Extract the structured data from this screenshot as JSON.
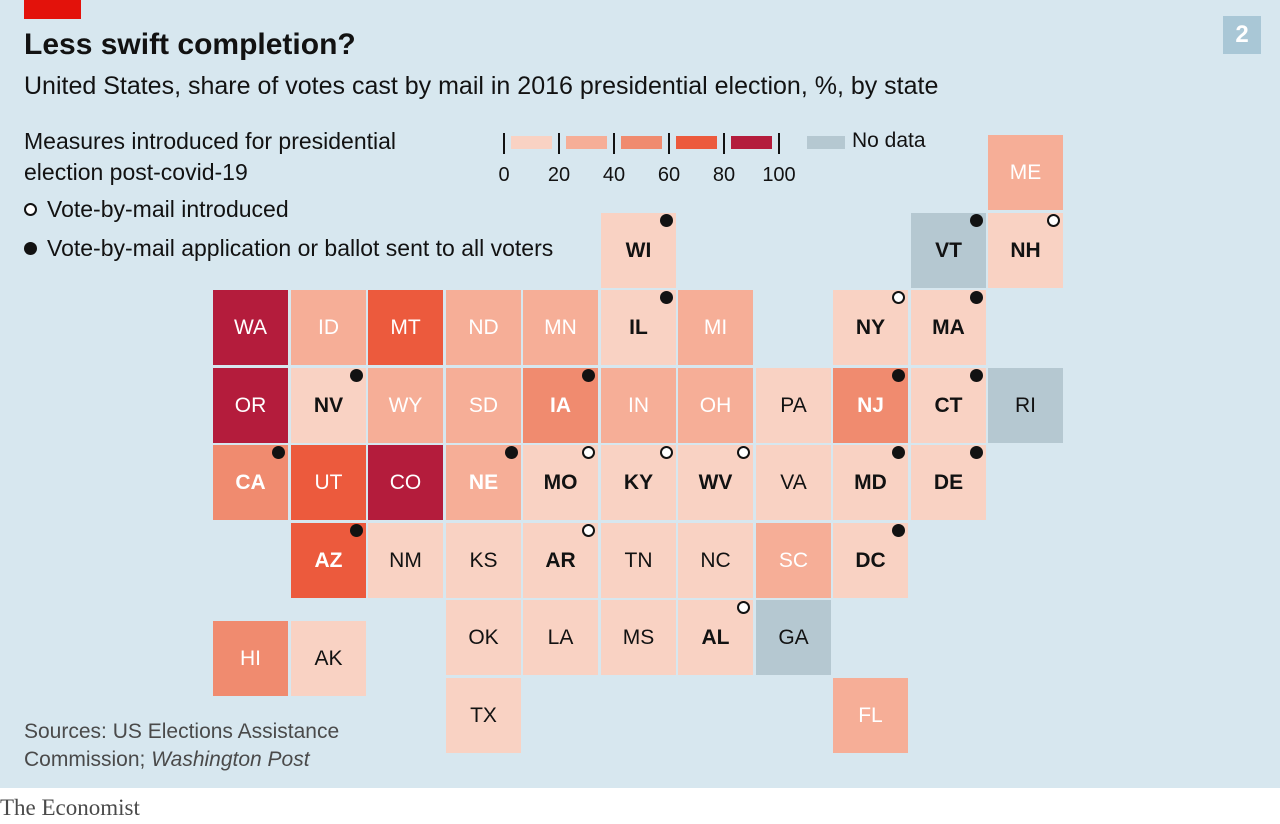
{
  "chart": {
    "number": "2",
    "title": "Less swift completion?",
    "subtitle": "United States, share of votes cast by mail in 2016 presidential election, %, by state"
  },
  "legend": {
    "measures_title": "Measures introduced for presidential election post-covid-19",
    "open_label": "Vote-by-mail introduced",
    "filled_label": "Vote-by-mail application or ballot sent to all voters",
    "scale_ticks": [
      "0",
      "20",
      "40",
      "60",
      "80",
      "100"
    ],
    "scale_colors": [
      "#f9d2c3",
      "#f6ae97",
      "#f08b6f",
      "#ec5a3d",
      "#b41c3c"
    ],
    "no_data_label": "No data",
    "no_data_color": "#b5c8d1"
  },
  "chart_data": {
    "type": "heatmap",
    "layout": "tile-grid map",
    "value_bins": [
      "0-20",
      "20-40",
      "40-60",
      "60-80",
      "80-100",
      "No data"
    ],
    "states": [
      {
        "abbr": "ME",
        "col": 10,
        "row": 0,
        "bin": 1,
        "measure": ""
      },
      {
        "abbr": "WI",
        "col": 5,
        "row": 1,
        "bin": 0,
        "measure": "filled"
      },
      {
        "abbr": "VT",
        "col": 9,
        "row": 1,
        "bin": 5,
        "measure": "filled"
      },
      {
        "abbr": "NH",
        "col": 10,
        "row": 1,
        "bin": 0,
        "measure": "open"
      },
      {
        "abbr": "WA",
        "col": 0,
        "row": 2,
        "bin": 4,
        "measure": ""
      },
      {
        "abbr": "ID",
        "col": 1,
        "row": 2,
        "bin": 1,
        "measure": ""
      },
      {
        "abbr": "MT",
        "col": 2,
        "row": 2,
        "bin": 3,
        "measure": ""
      },
      {
        "abbr": "ND",
        "col": 3,
        "row": 2,
        "bin": 1,
        "measure": ""
      },
      {
        "abbr": "MN",
        "col": 4,
        "row": 2,
        "bin": 1,
        "measure": ""
      },
      {
        "abbr": "IL",
        "col": 5,
        "row": 2,
        "bin": 0,
        "measure": "filled"
      },
      {
        "abbr": "MI",
        "col": 6,
        "row": 2,
        "bin": 1,
        "measure": ""
      },
      {
        "abbr": "NY",
        "col": 8,
        "row": 2,
        "bin": 0,
        "measure": "open"
      },
      {
        "abbr": "MA",
        "col": 9,
        "row": 2,
        "bin": 0,
        "measure": "filled"
      },
      {
        "abbr": "OR",
        "col": 0,
        "row": 3,
        "bin": 4,
        "measure": ""
      },
      {
        "abbr": "NV",
        "col": 1,
        "row": 3,
        "bin": 0,
        "measure": "filled"
      },
      {
        "abbr": "WY",
        "col": 2,
        "row": 3,
        "bin": 1,
        "measure": ""
      },
      {
        "abbr": "SD",
        "col": 3,
        "row": 3,
        "bin": 1,
        "measure": ""
      },
      {
        "abbr": "IA",
        "col": 4,
        "row": 3,
        "bin": 2,
        "measure": "filled"
      },
      {
        "abbr": "IN",
        "col": 5,
        "row": 3,
        "bin": 1,
        "measure": ""
      },
      {
        "abbr": "OH",
        "col": 6,
        "row": 3,
        "bin": 1,
        "measure": ""
      },
      {
        "abbr": "PA",
        "col": 7,
        "row": 3,
        "bin": 0,
        "measure": ""
      },
      {
        "abbr": "NJ",
        "col": 8,
        "row": 3,
        "bin": 2,
        "measure": "filled"
      },
      {
        "abbr": "CT",
        "col": 9,
        "row": 3,
        "bin": 0,
        "measure": "filled"
      },
      {
        "abbr": "RI",
        "col": 10,
        "row": 3,
        "bin": 5,
        "measure": ""
      },
      {
        "abbr": "CA",
        "col": 0,
        "row": 4,
        "bin": 2,
        "measure": "filled"
      },
      {
        "abbr": "UT",
        "col": 1,
        "row": 4,
        "bin": 3,
        "measure": ""
      },
      {
        "abbr": "CO",
        "col": 2,
        "row": 4,
        "bin": 4,
        "measure": ""
      },
      {
        "abbr": "NE",
        "col": 3,
        "row": 4,
        "bin": 1,
        "measure": "filled"
      },
      {
        "abbr": "MO",
        "col": 4,
        "row": 4,
        "bin": 0,
        "measure": "open"
      },
      {
        "abbr": "KY",
        "col": 5,
        "row": 4,
        "bin": 0,
        "measure": "open"
      },
      {
        "abbr": "WV",
        "col": 6,
        "row": 4,
        "bin": 0,
        "measure": "open"
      },
      {
        "abbr": "VA",
        "col": 7,
        "row": 4,
        "bin": 0,
        "measure": ""
      },
      {
        "abbr": "MD",
        "col": 8,
        "row": 4,
        "bin": 0,
        "measure": "filled"
      },
      {
        "abbr": "DE",
        "col": 9,
        "row": 4,
        "bin": 0,
        "measure": "filled"
      },
      {
        "abbr": "AZ",
        "col": 1,
        "row": 5,
        "bin": 3,
        "measure": "filled"
      },
      {
        "abbr": "NM",
        "col": 2,
        "row": 5,
        "bin": 0,
        "measure": ""
      },
      {
        "abbr": "KS",
        "col": 3,
        "row": 5,
        "bin": 0,
        "measure": ""
      },
      {
        "abbr": "AR",
        "col": 4,
        "row": 5,
        "bin": 0,
        "measure": "open"
      },
      {
        "abbr": "TN",
        "col": 5,
        "row": 5,
        "bin": 0,
        "measure": ""
      },
      {
        "abbr": "NC",
        "col": 6,
        "row": 5,
        "bin": 0,
        "measure": ""
      },
      {
        "abbr": "SC",
        "col": 7,
        "row": 5,
        "bin": 1,
        "measure": ""
      },
      {
        "abbr": "DC",
        "col": 8,
        "row": 5,
        "bin": 0,
        "measure": "filled"
      },
      {
        "abbr": "OK",
        "col": 3,
        "row": 6,
        "bin": 0,
        "measure": ""
      },
      {
        "abbr": "LA",
        "col": 4,
        "row": 6,
        "bin": 0,
        "measure": ""
      },
      {
        "abbr": "MS",
        "col": 5,
        "row": 6,
        "bin": 0,
        "measure": ""
      },
      {
        "abbr": "AL",
        "col": 6,
        "row": 6,
        "bin": 0,
        "measure": "open"
      },
      {
        "abbr": "GA",
        "col": 7,
        "row": 6,
        "bin": 5,
        "measure": ""
      },
      {
        "abbr": "TX",
        "col": 3,
        "row": 7,
        "bin": 0,
        "measure": ""
      },
      {
        "abbr": "FL",
        "col": 8,
        "row": 7,
        "bin": 1,
        "measure": ""
      },
      {
        "abbr": "HI",
        "col": 0,
        "row": 6.27,
        "bin": 2,
        "measure": ""
      },
      {
        "abbr": "AK",
        "col": 1,
        "row": 6.27,
        "bin": 0,
        "measure": ""
      }
    ]
  },
  "source": {
    "line1": "Sources: US Elections Assistance",
    "line2": "Commission; ",
    "publication": "Washington Post"
  },
  "footer": {
    "brand": "The Economist"
  }
}
